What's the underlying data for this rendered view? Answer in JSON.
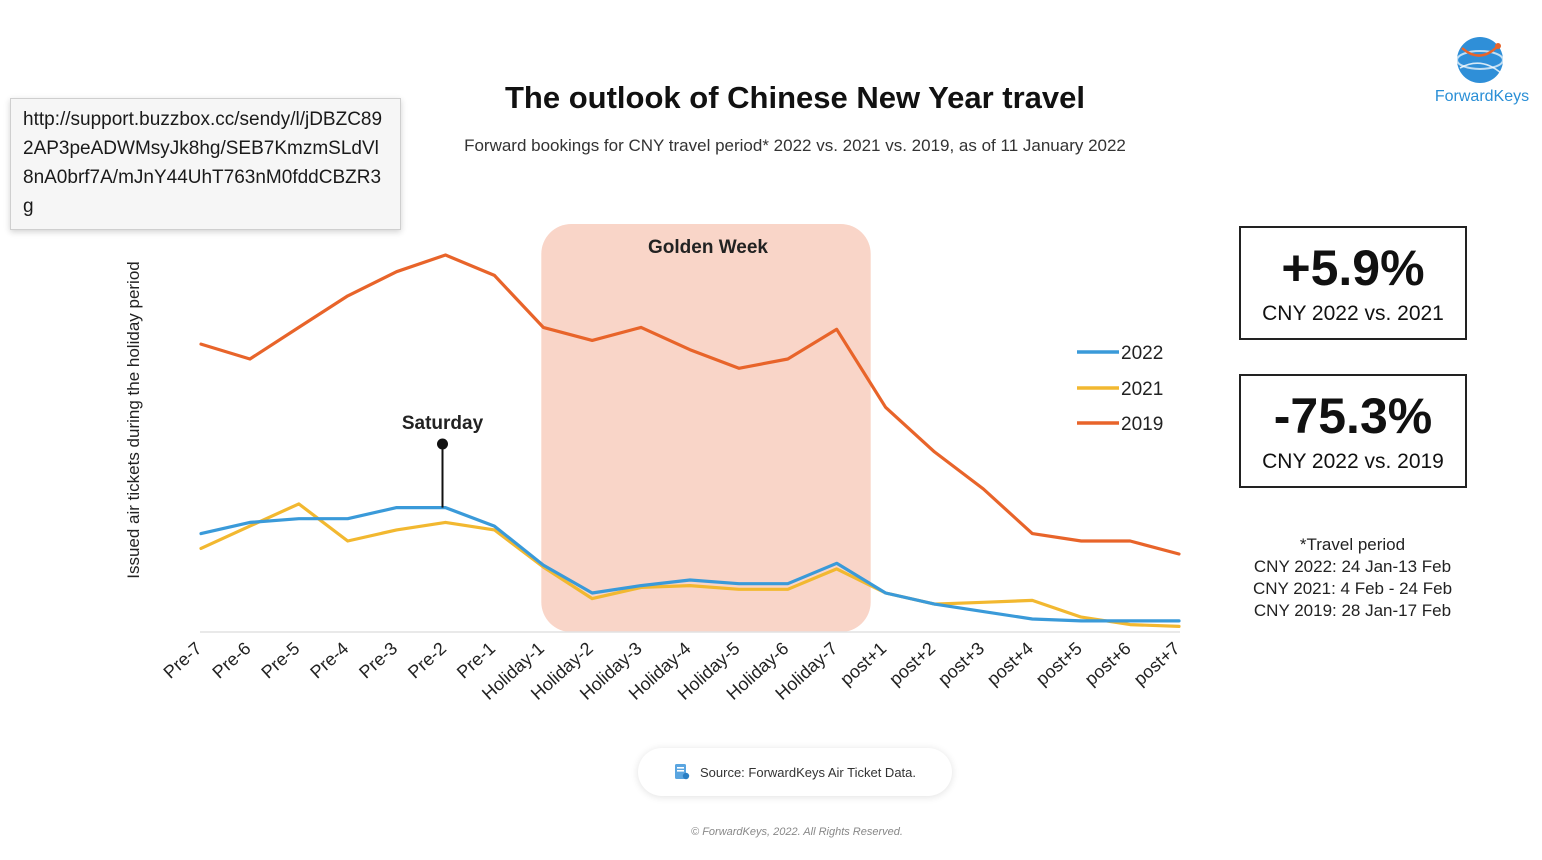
{
  "tooltip": {
    "url": "http://support.buzzbox.cc/sendy/l/jDBZC892AP3peADWMsyJk8hg/SEB7KmzmSLdVl8nA0brf7A/mJnY44UhT763nM0fddCBZR3g"
  },
  "logo": {
    "text": "ForwardKeys"
  },
  "stats": [
    {
      "value": "+5.9%",
      "label": "CNY 2022 vs. 2021"
    },
    {
      "value": "-75.3%",
      "label": "CNY 2022 vs. 2019"
    }
  ],
  "travel_period": {
    "heading": "*Travel period",
    "lines": [
      "CNY 2022: 24 Jan-13 Feb",
      "CNY 2021: 4 Feb - 24 Feb",
      "CNY 2019: 28 Jan-17 Feb"
    ]
  },
  "source": {
    "text": "Source: ForwardKeys Air Ticket Data."
  },
  "copyright": "© ForwardKeys, 2022. All Rights Reserved.",
  "colors": {
    "s2022": "#3a9ad9",
    "s2021": "#f2b830",
    "s2019": "#e8642a",
    "golden_week": "#f9d5c8"
  },
  "chart_data": {
    "type": "line",
    "title": "The outlook of Chinese New Year travel",
    "subtitle": "Forward bookings for CNY travel period* 2022 vs. 2021 vs. 2019, as of 11 January 2022",
    "xlabel": "",
    "ylabel": "Issued air tickets during the holiday period",
    "categories": [
      "Pre-7",
      "Pre-6",
      "Pre-5",
      "Pre-4",
      "Pre-3",
      "Pre-2",
      "Pre-1",
      "Holiday-1",
      "Holiday-2",
      "Holiday-3",
      "Holiday-4",
      "Holiday-5",
      "Holiday-6",
      "Holiday-7",
      "post+1",
      "post+2",
      "post+3",
      "post+4",
      "post+5",
      "post+6",
      "post+7"
    ],
    "ylim": [
      0,
      100
    ],
    "series": [
      {
        "name": "2022",
        "values": [
          26.5,
          29.5,
          30.5,
          30.5,
          33.5,
          33.5,
          28.5,
          18.0,
          10.5,
          12.5,
          14.0,
          13.0,
          13.0,
          18.5,
          10.5,
          7.5,
          5.5,
          3.5,
          3.0,
          3.0,
          3.0
        ]
      },
      {
        "name": "2021",
        "values": [
          22.5,
          28.5,
          34.5,
          24.5,
          27.5,
          29.5,
          27.5,
          17.5,
          9.0,
          12.0,
          12.5,
          11.5,
          11.5,
          17.0,
          10.5,
          7.5,
          8.0,
          8.5,
          4.0,
          2.0,
          1.5
        ]
      },
      {
        "name": "2019",
        "values": [
          77.5,
          73.5,
          82.0,
          90.5,
          97.0,
          101.5,
          96.0,
          82.0,
          78.5,
          82.0,
          76.0,
          71.0,
          73.5,
          81.5,
          60.5,
          48.5,
          38.5,
          26.5,
          24.5,
          24.5,
          21.0
        ]
      }
    ],
    "highlight": {
      "label": "Golden Week",
      "from": "Holiday-1",
      "to": "Holiday-7"
    },
    "annotations": [
      {
        "label": "Saturday",
        "category": "Pre-2",
        "series": "2022"
      }
    ],
    "legend": "right",
    "grid": false
  }
}
